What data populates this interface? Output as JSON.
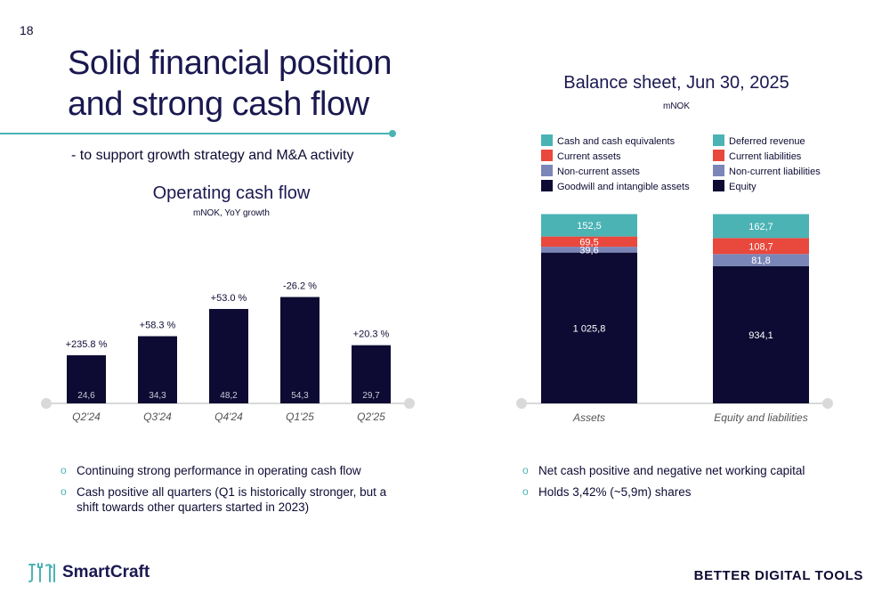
{
  "page_number": "18",
  "title_line1": "Solid financial position",
  "title_line2": "and strong cash flow",
  "subtitle": "- to support growth strategy and M&A activity",
  "left_bullets": [
    "Continuing strong performance in operating cash flow",
    "Cash positive all quarters (Q1 is historically stronger, but a shift towards other quarters started in 2023)"
  ],
  "right_bullets": [
    "Net cash positive and negative net working capital",
    "Holds 3,42% (~5,9m) shares"
  ],
  "brand": {
    "name": "SmartCraft",
    "tagline": "BETTER DIGITAL TOOLS",
    "icon": "brand-tools-icon"
  },
  "colors": {
    "navy": "#0d0b33",
    "teal": "#4bb3b4",
    "red": "#e9483c",
    "slate": "#7b86b8",
    "axis": "#d9d9d9"
  },
  "chart_data": [
    {
      "type": "bar",
      "title": "Operating cash flow",
      "unit": "mNOK, YoY growth",
      "categories": [
        "Q2'24",
        "Q3'24",
        "Q4'24",
        "Q1'25",
        "Q2'25"
      ],
      "values": [
        24.6,
        34.3,
        48.2,
        54.3,
        29.7
      ],
      "value_labels": [
        "24,6",
        "34,3",
        "48,2",
        "54,3",
        "29,7"
      ],
      "growth_labels": [
        "+235.8 %",
        "+58.3 %",
        "+53.0 %",
        "-26.2 %",
        "+20.3 %"
      ],
      "ylim": [
        0,
        60
      ],
      "grid": false
    },
    {
      "type": "bar",
      "stacked": true,
      "title": "Balance sheet, Jun 30, 2025",
      "unit": "mNOK",
      "categories": [
        "Assets",
        "Equity and liabilities"
      ],
      "legend_position": "top",
      "legend": [
        {
          "label": "Cash and cash equivalents",
          "color": "#4bb3b4"
        },
        {
          "label": "Deferred revenue",
          "color": "#4bb3b4"
        },
        {
          "label": "Current assets",
          "color": "#e9483c"
        },
        {
          "label": "Current liabilities",
          "color": "#e9483c"
        },
        {
          "label": "Non-current assets",
          "color": "#7b86b8"
        },
        {
          "label": "Non-current liabilities",
          "color": "#7b86b8"
        },
        {
          "label": "Goodwill and intangible assets",
          "color": "#0d0b33"
        },
        {
          "label": "Equity",
          "color": "#0d0b33"
        }
      ],
      "stacks": [
        {
          "category": "Assets",
          "segments": [
            {
              "name": "Goodwill and intangible assets",
              "value": 1025.8,
              "label": "1 025,8",
              "color": "#0d0b33"
            },
            {
              "name": "Non-current assets",
              "value": 39.6,
              "label": "39,6",
              "color": "#7b86b8"
            },
            {
              "name": "Current assets",
              "value": 69.5,
              "label": "69,5",
              "color": "#e9483c"
            },
            {
              "name": "Cash and cash equivalents",
              "value": 152.5,
              "label": "152,5",
              "color": "#4bb3b4"
            }
          ]
        },
        {
          "category": "Equity and liabilities",
          "segments": [
            {
              "name": "Equity",
              "value": 934.1,
              "label": "934,1",
              "color": "#0d0b33"
            },
            {
              "name": "Non-current liabilities",
              "value": 81.8,
              "label": "81,8",
              "color": "#7b86b8"
            },
            {
              "name": "Current liabilities",
              "value": 108.7,
              "label": "108,7",
              "color": "#e9483c"
            },
            {
              "name": "Deferred revenue",
              "value": 162.7,
              "label": "162,7",
              "color": "#4bb3b4"
            }
          ]
        }
      ]
    }
  ]
}
